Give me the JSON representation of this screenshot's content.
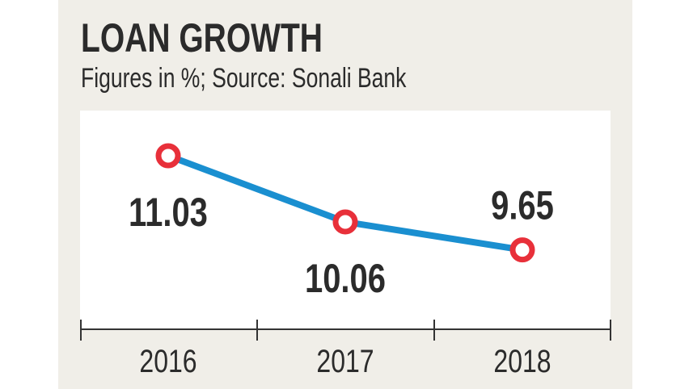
{
  "chart_data": {
    "type": "line",
    "title": "LOAN GROWTH",
    "subtitle": "Figures in %; Source: Sonali Bank",
    "categories": [
      "2016",
      "2017",
      "2018"
    ],
    "values": [
      11.03,
      10.06,
      9.65
    ],
    "data_labels": [
      "11.03",
      "10.06",
      "9.65"
    ],
    "label_positions": [
      "below",
      "below",
      "above"
    ],
    "grid": false,
    "y_axis_visible": false,
    "colors": {
      "line": "#1a8fd0",
      "marker": "#e8303a",
      "background": "#f0eee8",
      "plot": "#ffffff",
      "text": "#2b2b2b"
    }
  }
}
